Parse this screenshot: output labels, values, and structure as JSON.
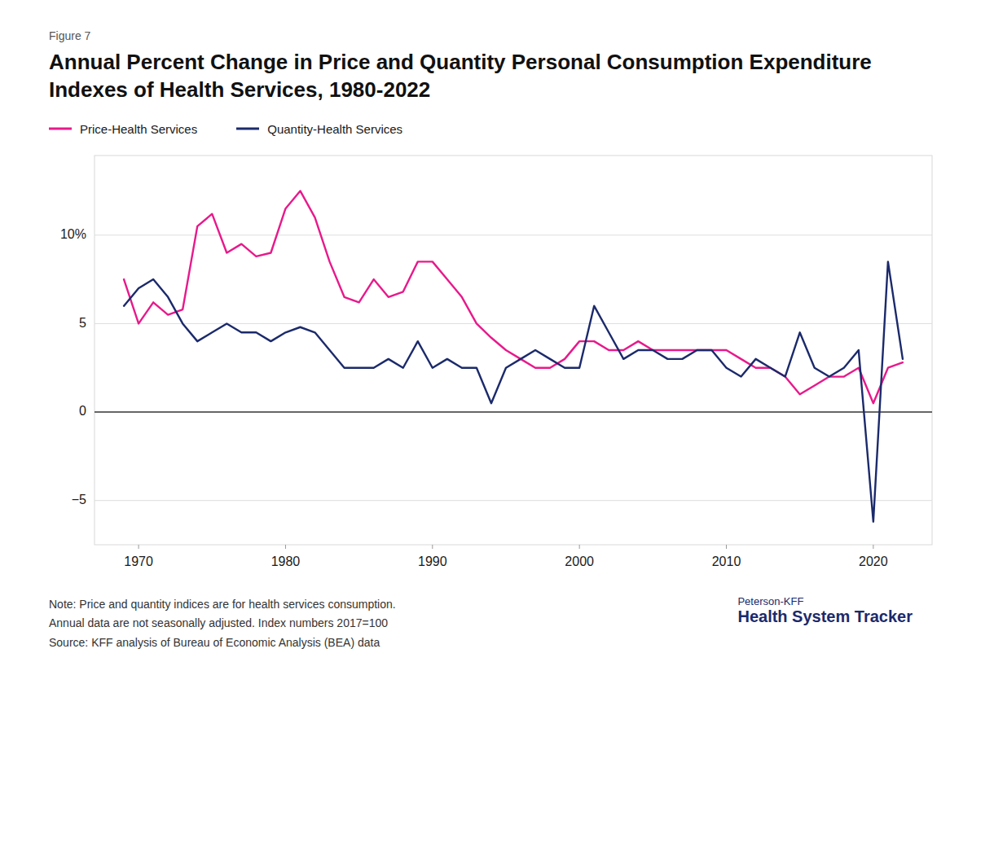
{
  "chart_data": {
    "type": "line",
    "title": "Annual Percent Change in Price and Quantity Personal Consumption Expenditure Indexes of Health Services, 1980-2022",
    "annotations": [
      "Figure 7"
    ],
    "notes": [
      "Note: Price and quantity indices are for health services consumption.",
      "Annual data are not seasonally adjusted. Index numbers 2017=100",
      "Source: KFF analysis of Bureau of Economic Analysis (BEA) data"
    ],
    "branding": [
      "Peterson-KFF",
      "Health System Tracker"
    ],
    "x": [
      1969,
      1970,
      1971,
      1972,
      1973,
      1974,
      1975,
      1976,
      1977,
      1978,
      1979,
      1980,
      1981,
      1982,
      1983,
      1984,
      1985,
      1986,
      1987,
      1988,
      1989,
      1990,
      1991,
      1992,
      1993,
      1994,
      1995,
      1996,
      1997,
      1998,
      1999,
      2000,
      2001,
      2002,
      2003,
      2004,
      2005,
      2006,
      2007,
      2008,
      2009,
      2010,
      2011,
      2012,
      2013,
      2014,
      2015,
      2016,
      2017,
      2018,
      2019,
      2020,
      2021,
      2022
    ],
    "series": [
      {
        "name": "Price-Health Services",
        "color": "#E8198B",
        "values": [
          7.5,
          5.0,
          6.2,
          5.5,
          5.8,
          10.5,
          11.2,
          9.0,
          9.5,
          8.8,
          9.0,
          11.5,
          12.5,
          11.0,
          8.5,
          6.5,
          6.2,
          7.5,
          6.5,
          6.8,
          8.5,
          8.5,
          7.5,
          6.5,
          5.0,
          4.2,
          3.5,
          3.0,
          2.5,
          2.5,
          3.0,
          4.0,
          4.0,
          3.5,
          3.5,
          4.0,
          3.5,
          3.5,
          3.5,
          3.5,
          3.5,
          3.5,
          3.0,
          2.5,
          2.5,
          2.0,
          1.0,
          1.5,
          2.0,
          2.0,
          2.5,
          0.5,
          2.5,
          2.8
        ]
      },
      {
        "name": "Quantity-Health Services",
        "color": "#1B2A6B",
        "values": [
          6.0,
          7.0,
          7.5,
          6.5,
          5.0,
          4.0,
          4.5,
          5.0,
          4.5,
          4.5,
          4.0,
          4.5,
          4.8,
          4.5,
          3.5,
          2.5,
          2.5,
          2.5,
          3.0,
          2.5,
          4.0,
          2.5,
          3.0,
          2.5,
          2.5,
          0.5,
          2.5,
          3.0,
          3.5,
          3.0,
          2.5,
          2.5,
          6.0,
          4.5,
          3.0,
          3.5,
          3.5,
          3.0,
          3.0,
          3.5,
          3.5,
          2.5,
          2.0,
          3.0,
          2.5,
          2.0,
          4.5,
          2.5,
          2.0,
          2.5,
          3.5,
          -6.2,
          8.5,
          3.0
        ]
      }
    ],
    "xlim": [
      1967,
      2024
    ],
    "xticks": [
      1970,
      1980,
      1990,
      2000,
      2010,
      2020
    ],
    "ylim": [
      -7.5,
      14.5
    ],
    "yticks": [
      {
        "value": -5,
        "label": "−5"
      },
      0,
      5,
      {
        "value": 10,
        "label": "10%"
      }
    ],
    "grid": true,
    "legend": "top-left"
  }
}
